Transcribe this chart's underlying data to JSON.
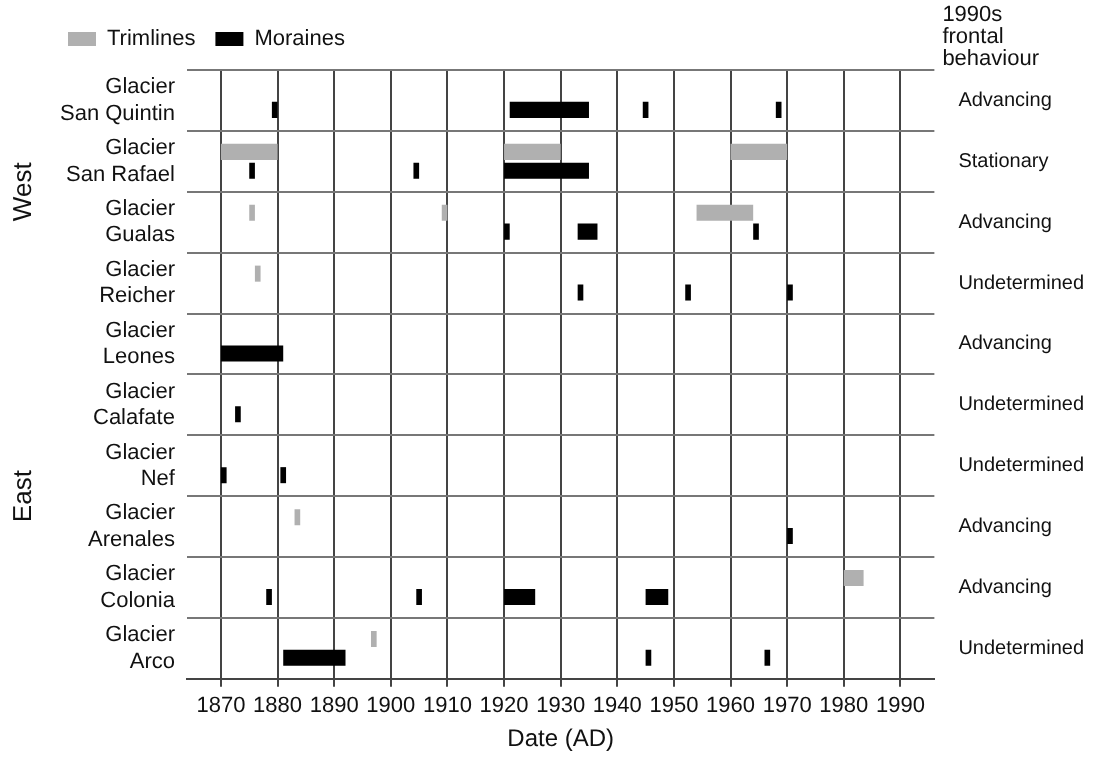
{
  "chart_data": {
    "type": "bar",
    "orientation": "horizontal",
    "xlabel": "Date (AD)",
    "y2label": "1990s frontal behaviour",
    "categories": [
      "Glacier San Quintin",
      "Glacier San Rafael",
      "Glacier Gualas",
      "Glacier Reicher",
      "Glacier Leones",
      "Glacier Calafate",
      "Glacier Nef",
      "Glacier Arenales",
      "Glacier Colonia",
      "Glacier Arco"
    ],
    "y2_categories": [
      "Advancing",
      "Stationary",
      "Advancing",
      "Undetermined",
      "Advancing",
      "Undetermined",
      "Undetermined",
      "Advancing",
      "Advancing",
      "Undetermined"
    ],
    "series": [
      {
        "name": "Trimlines",
        "color": "#b0b0b0",
        "base": [
          null,
          1870,
          1875,
          1876,
          null,
          null,
          null,
          1883,
          1980,
          1896.5
        ],
        "values": [
          null,
          10,
          1,
          1,
          null,
          null,
          null,
          1,
          3.5,
          1
        ]
      },
      {
        "color": "#b0b0b0",
        "base": [
          null,
          1920,
          1909,
          null,
          null,
          null,
          null,
          null,
          null,
          null
        ],
        "values": [
          null,
          10,
          1,
          null,
          null,
          null,
          null,
          null,
          null,
          null
        ]
      },
      {
        "color": "#b0b0b0",
        "base": [
          null,
          1960,
          1954,
          null,
          null,
          null,
          null,
          null,
          null,
          null
        ],
        "values": [
          null,
          10,
          10,
          null,
          null,
          null,
          null,
          null,
          null,
          null
        ]
      },
      {
        "name": "Moraines",
        "color": "#000000",
        "base": [
          1879,
          1875,
          1920,
          1933,
          1870,
          1872.5,
          1870,
          1970,
          1878,
          1881
        ],
        "values": [
          1,
          1,
          1,
          1,
          11,
          1,
          1,
          1,
          1,
          11
        ]
      },
      {
        "color": "#000000",
        "base": [
          1921,
          1904,
          1933,
          1952,
          null,
          null,
          1880.5,
          null,
          1904.5,
          1945
        ],
        "values": [
          14,
          1,
          3.5,
          1,
          null,
          null,
          1,
          null,
          1,
          1
        ]
      },
      {
        "color": "#000000",
        "base": [
          1944.5,
          1920,
          1964,
          1970,
          null,
          null,
          null,
          null,
          1920,
          1966
        ],
        "values": [
          1,
          15,
          1,
          1,
          null,
          null,
          null,
          null,
          5.5,
          1
        ]
      },
      {
        "color": "#000000",
        "base": [
          1968,
          null,
          null,
          null,
          null,
          null,
          null,
          null,
          1945,
          null
        ],
        "values": [
          1,
          null,
          null,
          null,
          null,
          null,
          null,
          null,
          4,
          null
        ]
      }
    ],
    "xlim": [
      1864,
      1996
    ],
    "xticks": [
      1870,
      1880,
      1890,
      1900,
      1910,
      1920,
      1930,
      1940,
      1950,
      1960,
      1970,
      1980,
      1990
    ],
    "grid": true,
    "legend": "top left",
    "annotations": [
      "West",
      "East"
    ]
  }
}
